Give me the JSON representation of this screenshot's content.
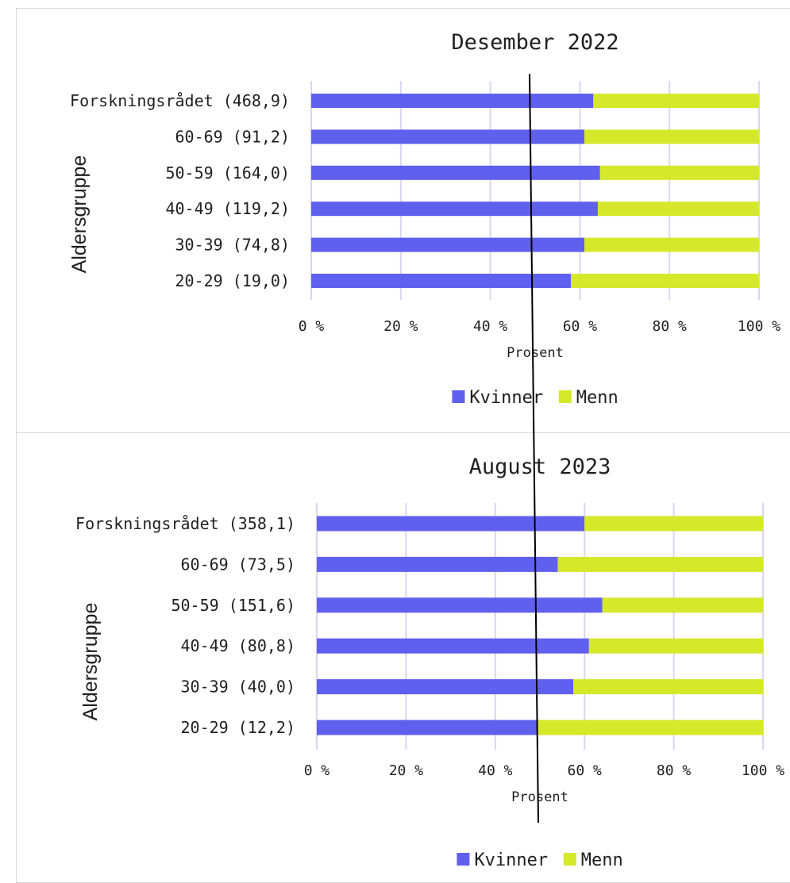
{
  "chart_data": [
    {
      "type": "bar",
      "orientation": "horizontal",
      "stacked": true,
      "title": "Desember 2022",
      "xlabel": "Prosent",
      "ylabel": "Aldersgruppe",
      "xlim": [
        0,
        100
      ],
      "x_ticks": [
        "0 %",
        "20 %",
        "40 %",
        "60 %",
        "80 %",
        "100 %"
      ],
      "categories": [
        "Forskningsrådet (468,9)",
        "60-69 (91,2)",
        "50-59 (164,0)",
        "40-49 (119,2)",
        "30-39 (74,8)",
        "20-29 (19,0)"
      ],
      "series": [
        {
          "name": "Kvinner",
          "color": "#6060ee",
          "values": [
            63,
            61,
            64.5,
            64,
            61,
            58
          ]
        },
        {
          "name": "Menn",
          "color": "#d6e82a",
          "values": [
            37,
            39,
            35.5,
            36,
            39,
            42
          ]
        }
      ],
      "legend": "bottom-center",
      "grid": "vertical"
    },
    {
      "type": "bar",
      "orientation": "horizontal",
      "stacked": true,
      "title": "August 2023",
      "xlabel": "Prosent",
      "ylabel": "Aldersgruppe",
      "xlim": [
        0,
        100
      ],
      "x_ticks": [
        "0 %",
        "20 %",
        "40 %",
        "60 %",
        "80 %",
        "100 %"
      ],
      "categories": [
        "Forskningsrådet (358,1)",
        "60-69 (73,5)",
        "50-59 (151,6)",
        "40-49 (80,8)",
        "30-39 (40,0)",
        "20-29 (12,2)"
      ],
      "series": [
        {
          "name": "Kvinner",
          "color": "#6060ee",
          "values": [
            60,
            54,
            64,
            61,
            57.5,
            49.5
          ]
        },
        {
          "name": "Menn",
          "color": "#d6e82a",
          "values": [
            40,
            46,
            36,
            39,
            42.5,
            50.5
          ]
        }
      ],
      "legend": "bottom-center",
      "grid": "vertical"
    }
  ],
  "annotation": {
    "type": "reference-line",
    "description": "hand-drawn vertical line near 50 %"
  }
}
